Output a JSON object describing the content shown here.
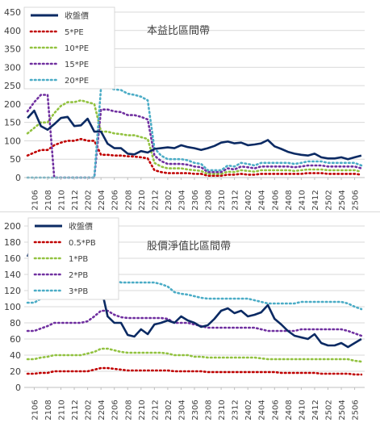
{
  "chart_data": [
    {
      "type": "line",
      "title": "本益比區間帶",
      "legend_position": "top-left",
      "ylim": [
        0,
        450
      ],
      "yticks": [
        0,
        50,
        100,
        150,
        200,
        250,
        300,
        350,
        400,
        450
      ],
      "x": [
        "2105",
        "2106",
        "2107",
        "2108",
        "2109",
        "2110",
        "2111",
        "2112",
        "2201",
        "2202",
        "2203",
        "2204",
        "2205",
        "2206",
        "2207",
        "2208",
        "2209",
        "2210",
        "2211",
        "2212",
        "2301",
        "2302",
        "2303",
        "2304",
        "2305",
        "2306",
        "2307",
        "2308",
        "2309",
        "2310",
        "2311",
        "2312",
        "2401",
        "2402",
        "2403",
        "2404",
        "2405",
        "2406",
        "2407",
        "2408",
        "2409",
        "2410",
        "2411",
        "2412",
        "2501",
        "2502",
        "2503",
        "2504",
        "2505",
        "2506",
        "2507"
      ],
      "xticks": [
        "2106",
        "2108",
        "2110",
        "2112",
        "2202",
        "2204",
        "2206",
        "2208",
        "2210",
        "2212",
        "2302",
        "2304",
        "2306",
        "2308",
        "2310",
        "2312",
        "2402",
        "2404",
        "2406",
        "2408",
        "2410",
        "2412",
        "2502",
        "2504",
        "2506"
      ],
      "series": [
        {
          "name": "收盤價",
          "color": "#0b2a63",
          "style": "solid",
          "values": [
            162,
            182,
            140,
            130,
            145,
            162,
            165,
            140,
            142,
            160,
            125,
            125,
            92,
            80,
            80,
            65,
            63,
            72,
            68,
            78,
            80,
            82,
            80,
            88,
            83,
            80,
            75,
            80,
            86,
            95,
            98,
            93,
            95,
            88,
            90,
            93,
            102,
            85,
            78,
            70,
            65,
            62,
            60,
            65,
            55,
            52,
            52,
            55,
            50,
            55,
            60
          ]
        },
        {
          "name": "5*PE",
          "color": "#c00000",
          "style": "dotted",
          "values": [
            60,
            68,
            75,
            75,
            88,
            95,
            100,
            100,
            105,
            100,
            100,
            62,
            62,
            60,
            60,
            58,
            57,
            55,
            52,
            20,
            15,
            12,
            12,
            12,
            12,
            10,
            10,
            5,
            5,
            5,
            8,
            8,
            10,
            8,
            8,
            10,
            10,
            10,
            10,
            10,
            10,
            10,
            12,
            12,
            12,
            10,
            10,
            10,
            10,
            10,
            8
          ]
        },
        {
          "name": "10*PE",
          "color": "#92c240",
          "style": "dotted",
          "values": [
            120,
            135,
            150,
            150,
            175,
            195,
            205,
            205,
            210,
            205,
            200,
            125,
            125,
            120,
            118,
            115,
            115,
            110,
            105,
            40,
            30,
            25,
            25,
            25,
            22,
            20,
            18,
            10,
            10,
            10,
            16,
            15,
            20,
            18,
            16,
            20,
            20,
            20,
            20,
            20,
            18,
            20,
            22,
            22,
            22,
            20,
            20,
            20,
            20,
            20,
            16
          ]
        },
        {
          "name": "15*PE",
          "color": "#7030a0",
          "style": "dotted",
          "values": [
            180,
            205,
            225,
            225,
            0,
            0,
            0,
            0,
            0,
            0,
            0,
            185,
            185,
            180,
            178,
            170,
            170,
            165,
            158,
            60,
            45,
            37,
            37,
            37,
            35,
            30,
            28,
            15,
            15,
            15,
            25,
            22,
            30,
            28,
            25,
            30,
            30,
            30,
            30,
            30,
            28,
            30,
            33,
            33,
            33,
            30,
            30,
            30,
            30,
            30,
            25
          ]
        },
        {
          "name": "20*PE",
          "color": "#4bacc6",
          "style": "dotted",
          "values": [
            0,
            0,
            0,
            0,
            0,
            0,
            0,
            0,
            0,
            0,
            0,
            245,
            245,
            240,
            238,
            228,
            225,
            220,
            210,
            80,
            60,
            50,
            50,
            50,
            47,
            40,
            37,
            20,
            20,
            20,
            33,
            30,
            40,
            37,
            33,
            40,
            40,
            40,
            40,
            40,
            37,
            40,
            44,
            44,
            44,
            40,
            40,
            40,
            40,
            40,
            33
          ]
        }
      ]
    },
    {
      "type": "line",
      "title": "股價淨值比區間帶",
      "legend_position": "top-left",
      "ylim": [
        0,
        200
      ],
      "yticks": [
        0,
        20,
        40,
        60,
        80,
        100,
        120,
        140,
        160,
        180,
        200
      ],
      "x": [
        "2105",
        "2106",
        "2107",
        "2108",
        "2109",
        "2110",
        "2111",
        "2112",
        "2201",
        "2202",
        "2203",
        "2204",
        "2205",
        "2206",
        "2207",
        "2208",
        "2209",
        "2210",
        "2211",
        "2212",
        "2301",
        "2302",
        "2303",
        "2304",
        "2305",
        "2306",
        "2307",
        "2308",
        "2309",
        "2310",
        "2311",
        "2312",
        "2401",
        "2402",
        "2403",
        "2404",
        "2405",
        "2406",
        "2407",
        "2408",
        "2409",
        "2410",
        "2411",
        "2412",
        "2501",
        "2502",
        "2503",
        "2504",
        "2505",
        "2506",
        "2507"
      ],
      "xticks": [
        "2106",
        "2108",
        "2110",
        "2112",
        "2202",
        "2204",
        "2206",
        "2208",
        "2210",
        "2212",
        "2302",
        "2304",
        "2306",
        "2308",
        "2310",
        "2312",
        "2402",
        "2404",
        "2406",
        "2408",
        "2410",
        "2412",
        "2502",
        "2504",
        "2506"
      ],
      "series": [
        {
          "name": "收盤價",
          "color": "#0b2a63",
          "style": "solid",
          "values": [
            162,
            182,
            140,
            130,
            145,
            162,
            165,
            140,
            142,
            160,
            125,
            125,
            88,
            80,
            80,
            65,
            63,
            72,
            66,
            78,
            80,
            83,
            80,
            88,
            83,
            80,
            75,
            77,
            85,
            95,
            98,
            92,
            95,
            88,
            90,
            93,
            102,
            85,
            78,
            70,
            64,
            62,
            60,
            66,
            55,
            52,
            52,
            55,
            50,
            55,
            60
          ]
        },
        {
          "name": "0.5*PB",
          "color": "#c00000",
          "style": "dotted",
          "values": [
            17,
            17,
            18,
            18,
            20,
            20,
            20,
            20,
            20,
            20,
            22,
            24,
            24,
            23,
            22,
            21,
            21,
            21,
            21,
            21,
            21,
            21,
            20,
            20,
            20,
            20,
            20,
            19,
            19,
            19,
            19,
            19,
            19,
            19,
            19,
            19,
            19,
            19,
            18,
            18,
            18,
            18,
            18,
            18,
            17,
            17,
            17,
            17,
            17,
            16,
            16
          ]
        },
        {
          "name": "1*PB",
          "color": "#92c240",
          "style": "dotted",
          "values": [
            35,
            35,
            37,
            38,
            40,
            40,
            40,
            40,
            40,
            42,
            44,
            48,
            48,
            46,
            44,
            43,
            43,
            43,
            43,
            43,
            43,
            42,
            40,
            40,
            40,
            38,
            38,
            37,
            37,
            37,
            37,
            37,
            37,
            37,
            37,
            36,
            35,
            35,
            35,
            35,
            35,
            35,
            35,
            35,
            35,
            35,
            35,
            35,
            35,
            33,
            32
          ]
        },
        {
          "name": "2*PB",
          "color": "#7030a0",
          "style": "dotted",
          "values": [
            70,
            70,
            73,
            76,
            80,
            80,
            80,
            80,
            80,
            82,
            88,
            95,
            95,
            90,
            87,
            86,
            86,
            86,
            86,
            86,
            86,
            85,
            80,
            80,
            80,
            78,
            76,
            74,
            74,
            74,
            74,
            74,
            74,
            74,
            74,
            72,
            70,
            70,
            70,
            70,
            70,
            72,
            72,
            72,
            72,
            72,
            72,
            72,
            70,
            67,
            64
          ]
        },
        {
          "name": "3*PB",
          "color": "#4bacc6",
          "style": "dotted",
          "values": [
            105,
            105,
            110,
            114,
            120,
            120,
            120,
            120,
            120,
            123,
            130,
            140,
            140,
            133,
            130,
            130,
            130,
            130,
            130,
            130,
            128,
            125,
            118,
            116,
            115,
            113,
            111,
            110,
            110,
            110,
            110,
            110,
            110,
            110,
            108,
            106,
            104,
            104,
            104,
            104,
            104,
            106,
            106,
            106,
            106,
            106,
            106,
            106,
            104,
            100,
            97
          ]
        }
      ]
    }
  ]
}
